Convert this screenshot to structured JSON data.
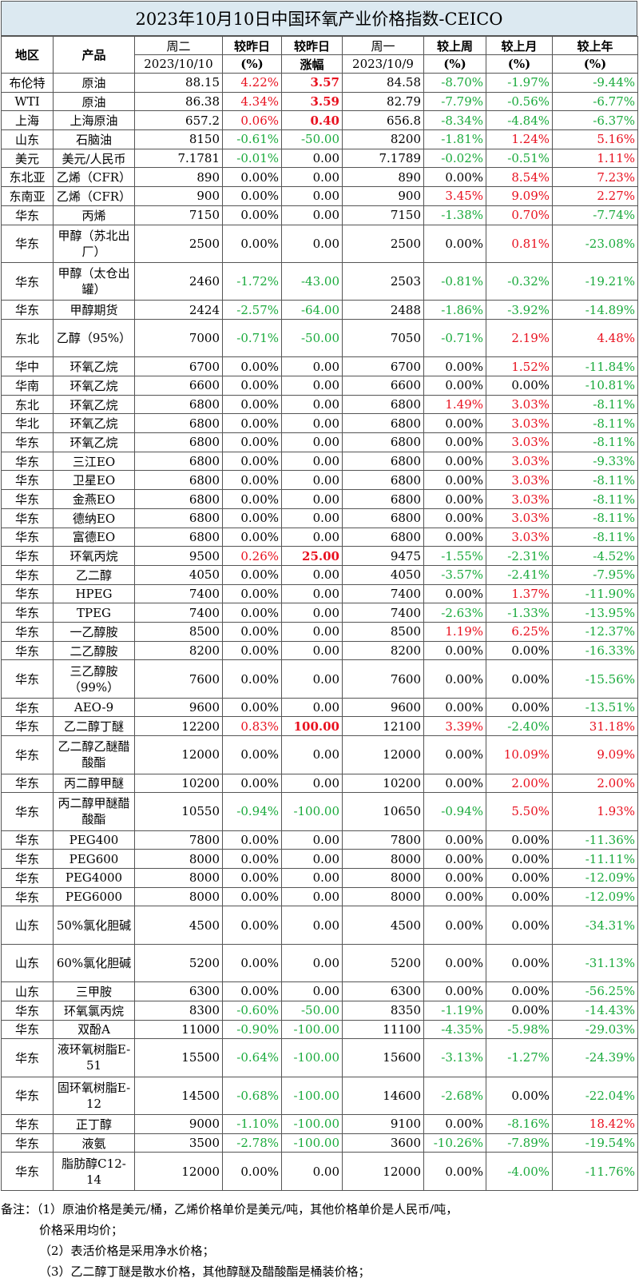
{
  "title": "2023年10月10日中国环氧产业价格指数-CEICO",
  "header": {
    "region": "地区",
    "product": "产品",
    "tue": "周二",
    "tue_date": "2023/10/10",
    "chg_pct": "较昨日",
    "chg_pct_unit": "(%)",
    "chg_amt": "较昨日",
    "chg_amt_unit": "涨幅",
    "mon": "周一",
    "mon_date": "2023/10/9",
    "wk": "较上周",
    "wk_unit": "(%)",
    "mo": "较上月",
    "mo_unit": "(%)",
    "yr": "较上年",
    "yr_unit": "(%)"
  },
  "rows": [
    {
      "region": "布伦特",
      "product": "原油",
      "tue": "88.15",
      "d1": "4.22%",
      "amt": "3.57",
      "mon": "84.58",
      "wk": "-8.70%",
      "mo": "-1.97%",
      "yr": "-9.44%",
      "h": 2
    },
    {
      "region": "WTI",
      "product": "原油",
      "tue": "86.38",
      "d1": "4.34%",
      "amt": "3.59",
      "mon": "82.79",
      "wk": "-7.79%",
      "mo": "-0.56%",
      "yr": "-6.77%",
      "h": 2
    },
    {
      "region": "上海",
      "product": "上海原油",
      "tue": "657.2",
      "d1": "0.06%",
      "amt": "0.40",
      "mon": "656.8",
      "wk": "-8.34%",
      "mo": "-4.84%",
      "yr": "-6.37%",
      "h": 2
    },
    {
      "region": "山东",
      "product": "石脑油",
      "tue": "8150",
      "d1": "-0.61%",
      "amt": "-50.00",
      "mon": "8200",
      "wk": "-1.81%",
      "mo": "1.24%",
      "yr": "5.16%",
      "h": 2
    },
    {
      "region": "美元",
      "product": "美元/人民币",
      "tue": "7.1781",
      "d1": "-0.01%",
      "amt": "0.00",
      "mon": "7.1789",
      "wk": "-0.02%",
      "mo": "-0.51%",
      "yr": "1.11%",
      "h": 2
    },
    {
      "region": "东北亚",
      "product": "乙烯（CFR）",
      "tue": "890",
      "d1": "0.00%",
      "amt": "0.00",
      "mon": "890",
      "wk": "0.00%",
      "mo": "8.54%",
      "yr": "7.23%",
      "h": 2
    },
    {
      "region": "东南亚",
      "product": "乙烯（CFR）",
      "tue": "900",
      "d1": "0.00%",
      "amt": "0.00",
      "mon": "900",
      "wk": "3.45%",
      "mo": "9.09%",
      "yr": "2.27%",
      "h": 2
    },
    {
      "region": "华东",
      "product": "丙烯",
      "tue": "7150",
      "d1": "0.00%",
      "amt": "0.00",
      "mon": "7150",
      "wk": "-1.38%",
      "mo": "0.70%",
      "yr": "-7.74%",
      "h": 2
    },
    {
      "region": "华东",
      "product": "甲醇（苏北出厂）",
      "tue": "2500",
      "d1": "0.00%",
      "amt": "0.00",
      "mon": "2500",
      "wk": "0.00%",
      "mo": "0.81%",
      "yr": "-23.08%",
      "h": 4
    },
    {
      "region": "华东",
      "product": "甲醇（太仓出罐）",
      "tue": "2460",
      "d1": "-1.72%",
      "amt": "-43.00",
      "mon": "2503",
      "wk": "-0.81%",
      "mo": "-0.32%",
      "yr": "-19.21%",
      "h": 4
    },
    {
      "region": "华东",
      "product": "甲醇期货",
      "tue": "2424",
      "d1": "-2.57%",
      "amt": "-64.00",
      "mon": "2488",
      "wk": "-1.86%",
      "mo": "-3.92%",
      "yr": "-14.89%",
      "h": 2
    },
    {
      "region": "东北",
      "product": "乙醇（95%）",
      "tue": "7000",
      "d1": "-0.71%",
      "amt": "-50.00",
      "mon": "7050",
      "wk": "-0.71%",
      "mo": "2.19%",
      "yr": "4.48%",
      "h": 4
    },
    {
      "region": "华中",
      "product": "环氧乙烷",
      "tue": "6700",
      "d1": "0.00%",
      "amt": "0.00",
      "mon": "6700",
      "wk": "0.00%",
      "mo": "1.52%",
      "yr": "-11.84%",
      "h": 2
    },
    {
      "region": "华南",
      "product": "环氧乙烷",
      "tue": "6600",
      "d1": "0.00%",
      "amt": "0.00",
      "mon": "6600",
      "wk": "0.00%",
      "mo": "0.00%",
      "yr": "-10.81%",
      "h": 2
    },
    {
      "region": "东北",
      "product": "环氧乙烷",
      "tue": "6800",
      "d1": "0.00%",
      "amt": "0.00",
      "mon": "6800",
      "wk": "1.49%",
      "mo": "3.03%",
      "yr": "-8.11%",
      "h": 2
    },
    {
      "region": "华北",
      "product": "环氧乙烷",
      "tue": "6800",
      "d1": "0.00%",
      "amt": "0.00",
      "mon": "6800",
      "wk": "0.00%",
      "mo": "3.03%",
      "yr": "-8.11%",
      "h": 2
    },
    {
      "region": "华东",
      "product": "环氧乙烷",
      "tue": "6800",
      "d1": "0.00%",
      "amt": "0.00",
      "mon": "6800",
      "wk": "0.00%",
      "mo": "3.03%",
      "yr": "-8.11%",
      "h": 2
    },
    {
      "region": "华东",
      "product": "三江EO",
      "tue": "6800",
      "d1": "0.00%",
      "amt": "0.00",
      "mon": "6800",
      "wk": "0.00%",
      "mo": "3.03%",
      "yr": "-9.33%",
      "h": 2
    },
    {
      "region": "华东",
      "product": "卫星EO",
      "tue": "6800",
      "d1": "0.00%",
      "amt": "0.00",
      "mon": "6800",
      "wk": "0.00%",
      "mo": "3.03%",
      "yr": "-8.11%",
      "h": 2
    },
    {
      "region": "华东",
      "product": "金燕EO",
      "tue": "6800",
      "d1": "0.00%",
      "amt": "0.00",
      "mon": "6800",
      "wk": "0.00%",
      "mo": "3.03%",
      "yr": "-8.11%",
      "h": 2
    },
    {
      "region": "华东",
      "product": "德纳EO",
      "tue": "6800",
      "d1": "0.00%",
      "amt": "0.00",
      "mon": "6800",
      "wk": "0.00%",
      "mo": "3.03%",
      "yr": "-8.11%",
      "h": 2
    },
    {
      "region": "华东",
      "product": "富德EO",
      "tue": "6800",
      "d1": "0.00%",
      "amt": "0.00",
      "mon": "6800",
      "wk": "0.00%",
      "mo": "3.03%",
      "yr": "-8.11%",
      "h": 2
    },
    {
      "region": "华东",
      "product": "环氧丙烷",
      "tue": "9500",
      "d1": "0.26%",
      "amt": "25.00",
      "mon": "9475",
      "wk": "-1.55%",
      "mo": "-2.31%",
      "yr": "-4.52%",
      "h": 2
    },
    {
      "region": "华东",
      "product": "乙二醇",
      "tue": "4050",
      "d1": "0.00%",
      "amt": "0.00",
      "mon": "4050",
      "wk": "-3.57%",
      "mo": "-2.41%",
      "yr": "-7.95%",
      "h": 2
    },
    {
      "region": "华东",
      "product": "HPEG",
      "tue": "7400",
      "d1": "0.00%",
      "amt": "0.00",
      "mon": "7400",
      "wk": "0.00%",
      "mo": "1.37%",
      "yr": "-11.90%",
      "h": 2
    },
    {
      "region": "华东",
      "product": "TPEG",
      "tue": "7400",
      "d1": "0.00%",
      "amt": "0.00",
      "mon": "7400",
      "wk": "-2.63%",
      "mo": "-1.33%",
      "yr": "-13.95%",
      "h": 2
    },
    {
      "region": "华东",
      "product": "一乙醇胺",
      "tue": "8500",
      "d1": "0.00%",
      "amt": "0.00",
      "mon": "8500",
      "wk": "1.19%",
      "mo": "6.25%",
      "yr": "-12.37%",
      "h": 2
    },
    {
      "region": "华东",
      "product": "二乙醇胺",
      "tue": "8200",
      "d1": "0.00%",
      "amt": "0.00",
      "mon": "8200",
      "wk": "0.00%",
      "mo": "0.00%",
      "yr": "-16.33%",
      "h": 2
    },
    {
      "region": "华东",
      "product": "三乙醇胺（99%）",
      "tue": "7600",
      "d1": "0.00%",
      "amt": "0.00",
      "mon": "7600",
      "wk": "0.00%",
      "mo": "0.00%",
      "yr": "-15.56%",
      "h": 4
    },
    {
      "region": "华东",
      "product": "AEO-9",
      "tue": "9600",
      "d1": "0.00%",
      "amt": "0.00",
      "mon": "9600",
      "wk": "0.00%",
      "mo": "0.00%",
      "yr": "-13.51%",
      "h": 2
    },
    {
      "region": "华东",
      "product": "乙二醇丁醚",
      "tue": "12200",
      "d1": "0.83%",
      "amt": "100.00",
      "mon": "12100",
      "wk": "3.39%",
      "mo": "-2.40%",
      "yr": "31.18%",
      "h": 2
    },
    {
      "region": "华东",
      "product": "乙二醇乙醚醋酸酯",
      "tue": "12000",
      "d1": "0.00%",
      "amt": "0.00",
      "mon": "12000",
      "wk": "0.00%",
      "mo": "10.09%",
      "yr": "9.09%",
      "h": 4
    },
    {
      "region": "华东",
      "product": "丙二醇甲醚",
      "tue": "10200",
      "d1": "0.00%",
      "amt": "0.00",
      "mon": "10200",
      "wk": "0.00%",
      "mo": "2.00%",
      "yr": "2.00%",
      "h": 2
    },
    {
      "region": "华东",
      "product": "丙二醇甲醚醋酸酯",
      "tue": "10550",
      "d1": "-0.94%",
      "amt": "-100.00",
      "mon": "10650",
      "wk": "-0.94%",
      "mo": "5.50%",
      "yr": "1.93%",
      "h": 4
    },
    {
      "region": "华东",
      "product": "PEG400",
      "tue": "7800",
      "d1": "0.00%",
      "amt": "0.00",
      "mon": "7800",
      "wk": "0.00%",
      "mo": "0.00%",
      "yr": "-11.36%",
      "h": 2
    },
    {
      "region": "华东",
      "product": "PEG600",
      "tue": "8000",
      "d1": "0.00%",
      "amt": "0.00",
      "mon": "8000",
      "wk": "0.00%",
      "mo": "0.00%",
      "yr": "-11.11%",
      "h": 2
    },
    {
      "region": "华东",
      "product": "PEG4000",
      "tue": "8000",
      "d1": "0.00%",
      "amt": "0.00",
      "mon": "8000",
      "wk": "0.00%",
      "mo": "0.00%",
      "yr": "-12.09%",
      "h": 2
    },
    {
      "region": "华东",
      "product": "PEG6000",
      "tue": "8000",
      "d1": "0.00%",
      "amt": "0.00",
      "mon": "8000",
      "wk": "0.00%",
      "mo": "0.00%",
      "yr": "-12.09%",
      "h": 2
    },
    {
      "region": "山东",
      "product": "50%氯化胆碱",
      "tue": "4500",
      "d1": "0.00%",
      "amt": "0.00",
      "mon": "4500",
      "wk": "0.00%",
      "mo": "0.00%",
      "yr": "-34.31%",
      "h": 4
    },
    {
      "region": "山东",
      "product": "60%氯化胆碱",
      "tue": "5200",
      "d1": "0.00%",
      "amt": "0.00",
      "mon": "5200",
      "wk": "0.00%",
      "mo": "0.00%",
      "yr": "-31.13%",
      "h": 4
    },
    {
      "region": "山东",
      "product": "三甲胺",
      "tue": "6300",
      "d1": "0.00%",
      "amt": "0.00",
      "mon": "6300",
      "wk": "0.00%",
      "mo": "0.00%",
      "yr": "-56.25%",
      "h": 2
    },
    {
      "region": "华东",
      "product": "环氧氯丙烷",
      "tue": "8300",
      "d1": "-0.60%",
      "amt": "-50.00",
      "mon": "8350",
      "wk": "-1.19%",
      "mo": "0.00%",
      "yr": "-14.43%",
      "h": 2
    },
    {
      "region": "华东",
      "product": "双酚A",
      "tue": "11000",
      "d1": "-0.90%",
      "amt": "-100.00",
      "mon": "11100",
      "wk": "-4.35%",
      "mo": "-5.98%",
      "yr": "-29.03%",
      "h": 2
    },
    {
      "region": "华东",
      "product": "液环氧树脂E-51",
      "tue": "15500",
      "d1": "-0.64%",
      "amt": "-100.00",
      "mon": "15600",
      "wk": "-3.13%",
      "mo": "-1.27%",
      "yr": "-24.39%",
      "h": 4
    },
    {
      "region": "华东",
      "product": "固环氧树脂E-12",
      "tue": "14500",
      "d1": "-0.68%",
      "amt": "-100.00",
      "mon": "14600",
      "wk": "-2.68%",
      "mo": "0.00%",
      "yr": "-22.04%",
      "h": 4
    },
    {
      "region": "华东",
      "product": "正丁醇",
      "tue": "9000",
      "d1": "-1.10%",
      "amt": "-100.00",
      "mon": "9100",
      "wk": "0.00%",
      "mo": "-8.16%",
      "yr": "18.42%",
      "h": 2
    },
    {
      "region": "华东",
      "product": "液氨",
      "tue": "3500",
      "d1": "-2.78%",
      "amt": "-100.00",
      "mon": "3600",
      "wk": "-10.26%",
      "mo": "-7.89%",
      "yr": "-19.54%",
      "h": 2
    },
    {
      "region": "华东",
      "product": "脂肪醇C12-14",
      "tue": "12000",
      "d1": "0.00%",
      "amt": "0.00",
      "mon": "12000",
      "wk": "0.00%",
      "mo": "-4.00%",
      "yr": "-11.76%",
      "h": 4
    }
  ],
  "notes": {
    "line1": "备注：（1）原油价格是美元/桶，乙烯价格单价是美元/吨，其他价格单价是人民币/吨，",
    "line1b": "价格采用均价；",
    "line2": "（2）表活价格是采用净水价格；",
    "line3": "（3）乙二醇丁醚是散水价格，其他醇醚及醋酸酯是桶装价格；"
  },
  "colors": {
    "title_bg": "#dce9f1",
    "up": "#e8101e",
    "down": "#1aaa3c"
  }
}
